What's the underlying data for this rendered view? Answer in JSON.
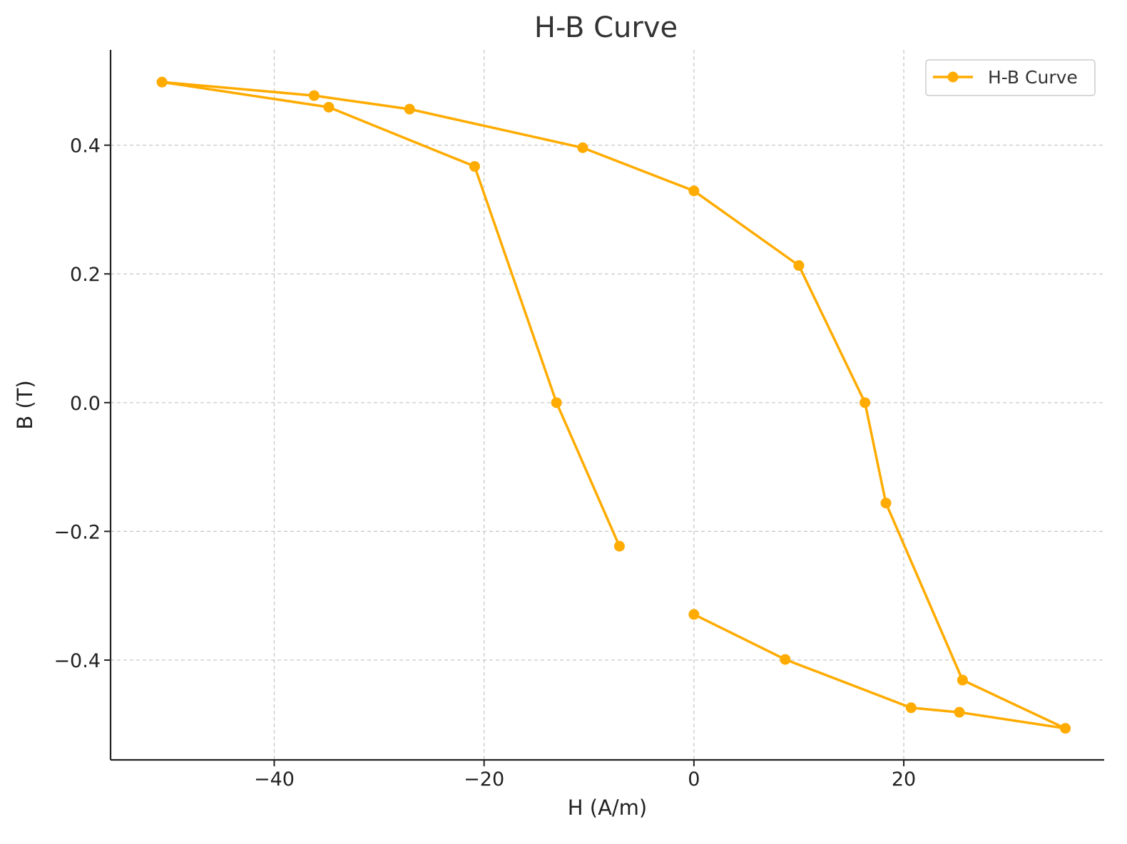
{
  "chart_data": {
    "type": "line",
    "title": "H-B Curve",
    "xlabel": "H (A/m)",
    "ylabel": "B (T)",
    "xlim": [
      -55.6,
      39.1
    ],
    "ylim": [
      -0.555,
      0.548
    ],
    "xticks": [
      -40,
      -20,
      0,
      20
    ],
    "xtick_labels": [
      "−40",
      "−20",
      "0",
      "20"
    ],
    "yticks": [
      -0.4,
      -0.2,
      0.0,
      0.2,
      0.4
    ],
    "ytick_labels": [
      "−0.4",
      "−0.2",
      "0.0",
      "0.2",
      "0.4"
    ],
    "grid": true,
    "legend_position": "top-right",
    "series": [
      {
        "name": "H-B Curve",
        "color": "#FFAB00",
        "marker": "circle",
        "x": [
          -7.1,
          -13.1,
          -20.9,
          -34.8,
          -50.7,
          -36.2,
          -27.1,
          -10.6,
          0.0,
          10.0,
          16.3,
          18.3,
          25.6,
          35.4,
          25.3,
          20.7,
          8.7,
          0.0
        ],
        "y": [
          -0.223,
          0.0,
          0.367,
          0.459,
          0.498,
          0.477,
          0.456,
          0.396,
          0.329,
          0.213,
          0.0,
          -0.156,
          -0.431,
          -0.506,
          -0.481,
          -0.474,
          -0.399,
          -0.329
        ]
      }
    ]
  }
}
